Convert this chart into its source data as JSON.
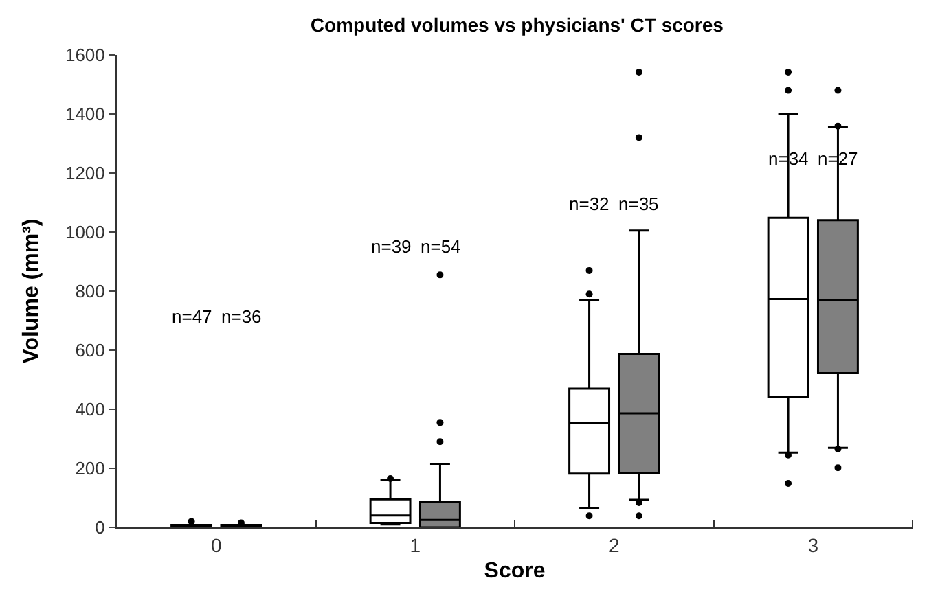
{
  "chart_data": {
    "type": "box",
    "title": "Computed volumes vs physicians' CT scores",
    "xlabel": "Score",
    "ylabel": "Volume (mm³)",
    "categories": [
      "0",
      "1",
      "2",
      "3"
    ],
    "ylim": [
      0,
      1600
    ],
    "yticks": [
      0,
      200,
      400,
      600,
      800,
      1000,
      1200,
      1400,
      1600
    ],
    "series": [
      {
        "color": "#ffffff",
        "boxes": [
          {
            "low": 0,
            "q1": 0,
            "median": 0,
            "q3": 8,
            "high": 8,
            "outliers": [
              20
            ]
          },
          {
            "low": 10,
            "q1": 15,
            "median": 40,
            "q3": 95,
            "high": 160,
            "outliers": [
              165
            ]
          },
          {
            "low": 65,
            "q1": 182,
            "median": 354,
            "q3": 470,
            "high": 770,
            "outliers": [
              870,
              790,
              39
            ]
          },
          {
            "low": 253,
            "q1": 443,
            "median": 773,
            "q3": 1048,
            "high": 1400,
            "outliers": [
              1542,
              1480,
              245,
              149
            ]
          }
        ]
      },
      {
        "color": "#808080",
        "boxes": [
          {
            "low": 0,
            "q1": 0,
            "median": 0,
            "q3": 8,
            "high": 8,
            "outliers": [
              15
            ]
          },
          {
            "low": 0,
            "q1": 0,
            "median": 25,
            "q3": 85,
            "high": 215,
            "outliers": [
              290,
              355,
              855
            ]
          },
          {
            "low": 93,
            "q1": 183,
            "median": 386,
            "q3": 587,
            "high": 1005,
            "outliers": [
              1542,
              1320,
              84,
              39
            ]
          },
          {
            "low": 269,
            "q1": 522,
            "median": 770,
            "q3": 1040,
            "high": 1355,
            "outliers": [
              1480,
              1359,
              265,
              202
            ]
          }
        ]
      }
    ],
    "annotations": [
      "n=47",
      "n=36",
      "n=39",
      "n=54",
      "n=32",
      "n=35",
      "n=34",
      "n=27"
    ]
  }
}
